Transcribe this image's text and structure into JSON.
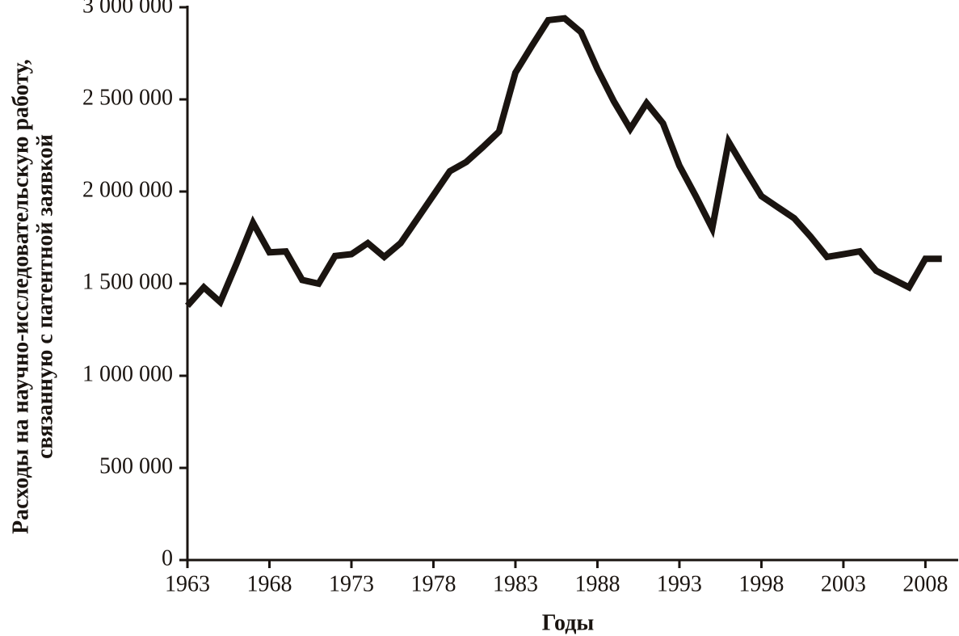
{
  "chart_data": {
    "type": "line",
    "ylabel": [
      "Расходы на научно-исследовательскую работу,",
      "связанную с патентной заявкой"
    ],
    "xlabel": "Годы",
    "x": [
      1963,
      1964,
      1965,
      1966,
      1967,
      1968,
      1969,
      1970,
      1971,
      1972,
      1973,
      1974,
      1975,
      1976,
      1977,
      1978,
      1979,
      1980,
      1981,
      1982,
      1983,
      1984,
      1985,
      1986,
      1987,
      1988,
      1989,
      1990,
      1991,
      1992,
      1993,
      1994,
      1995,
      1996,
      1997,
      1998,
      1999,
      2000,
      2001,
      2002,
      2003,
      2004,
      2005,
      2006,
      2007,
      2008,
      2009
    ],
    "series": [
      {
        "color": "#1a1410",
        "values": [
          1380000,
          1480000,
          1400000,
          1610000,
          1830000,
          1670000,
          1675000,
          1520000,
          1500000,
          1650000,
          1660000,
          1720000,
          1645000,
          1720000,
          1850000,
          1980000,
          2110000,
          2160000,
          2240000,
          2325000,
          2645000,
          2790000,
          2930000,
          2940000,
          2865000,
          2665000,
          2490000,
          2340000,
          2480000,
          2370000,
          2140000,
          1975000,
          1800000,
          2270000,
          2120000,
          1975000,
          1915000,
          1855000,
          1755000,
          1645000,
          1660000,
          1675000,
          1570000,
          1525000,
          1480000,
          1635000,
          1635000
        ]
      }
    ],
    "xlim": [
      1963,
      2010
    ],
    "xticks": [
      1963,
      1968,
      1973,
      1978,
      1983,
      1988,
      1993,
      1998,
      2003,
      2008
    ],
    "ylim": [
      0,
      3000000
    ],
    "yticks": [
      0,
      {
        "value": 500000,
        "label": "500 000"
      },
      {
        "value": 1000000,
        "label": "1 000 000"
      },
      {
        "value": 1500000,
        "label": "1 500 000"
      },
      {
        "value": 2000000,
        "label": "2 000 000"
      },
      {
        "value": 2500000,
        "label": "2 500 000"
      },
      {
        "value": 3000000,
        "label": "3 000 000"
      }
    ]
  }
}
